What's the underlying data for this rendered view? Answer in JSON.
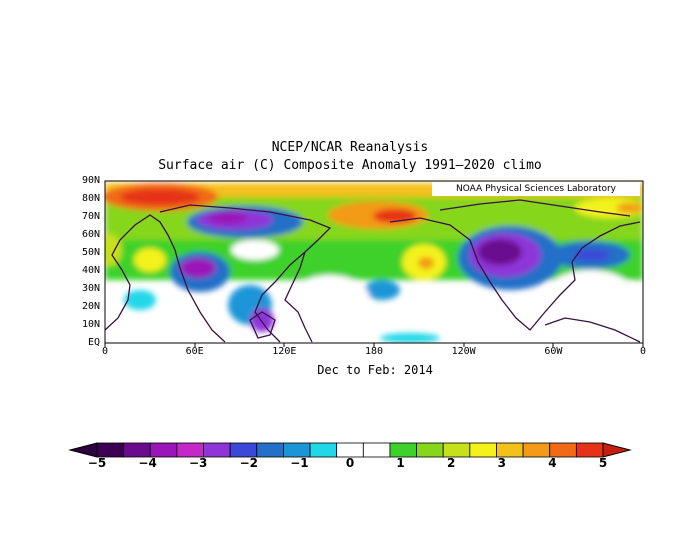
{
  "title": {
    "line1": "NCEP/NCAR Reanalysis",
    "line2": "Surface air (C) Composite Anomaly 1991–2020 climo"
  },
  "credit": "NOAA Physical Sciences Laboratory",
  "period": "Dec to Feb: 2014",
  "lat_labels": [
    "90N",
    "80N",
    "70N",
    "60N",
    "50N",
    "40N",
    "30N",
    "20N",
    "10N",
    "EQ"
  ],
  "lon_labels": [
    "0",
    "60E",
    "120E",
    "180",
    "120W",
    "60W",
    "0"
  ],
  "colorbar": {
    "labels": [
      "−5",
      "−4",
      "−3",
      "−2",
      "−1",
      "0",
      "1",
      "2",
      "3",
      "4",
      "5"
    ],
    "colors": [
      "#3b0052",
      "#6a0a8e",
      "#9a16b8",
      "#c428c8",
      "#8e35d8",
      "#3b49d8",
      "#2470c8",
      "#1a96d8",
      "#21d7e8",
      "#ffffff",
      "#ffffff",
      "#3ed12b",
      "#86d61c",
      "#c6e01c",
      "#f4f21a",
      "#f4c01a",
      "#f39a18",
      "#f16a16",
      "#e63217"
    ]
  },
  "map_colors": {
    "ocean_base": "#ffffff",
    "coast": "#3c0f46"
  }
}
